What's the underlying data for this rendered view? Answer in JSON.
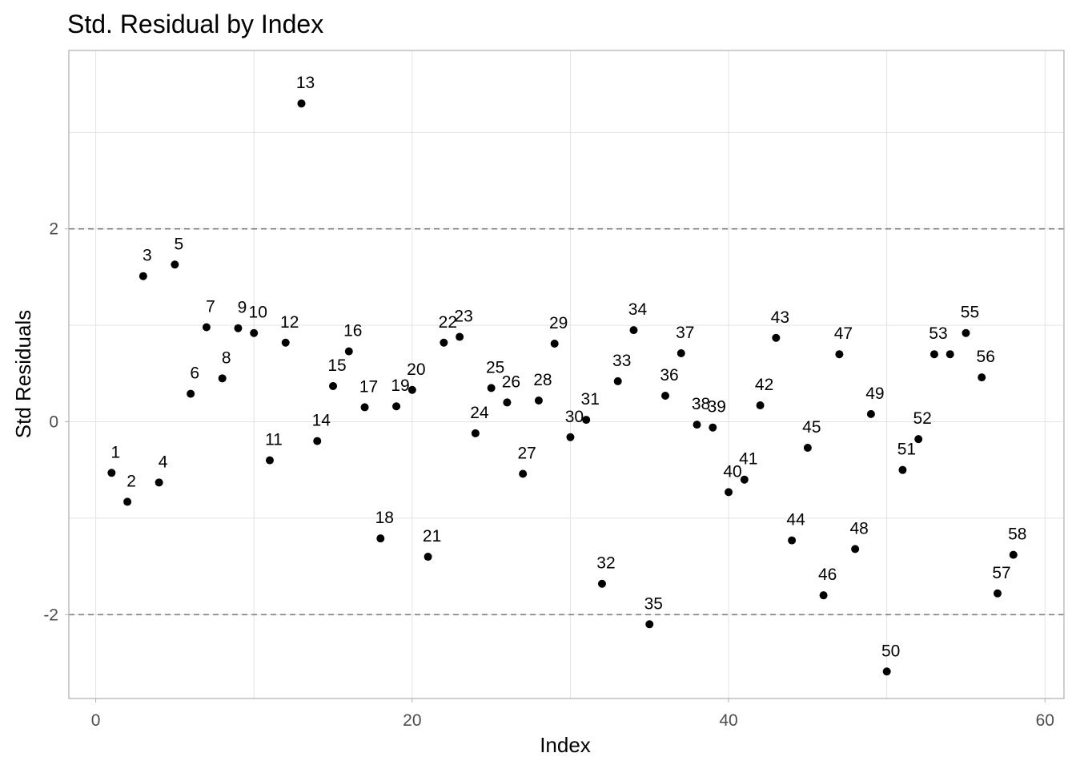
{
  "chart_data": {
    "type": "scatter",
    "title": "Std. Residual by Index",
    "xlabel": "Index",
    "ylabel": "Std Residuals",
    "xlim": [
      -1.7,
      61.2
    ],
    "ylim": [
      -2.87,
      3.85
    ],
    "x_ticks": [
      0,
      20,
      40,
      60
    ],
    "y_ticks": [
      -2,
      0,
      2
    ],
    "x_tick_labels": [
      "0",
      "20",
      "40",
      "60"
    ],
    "y_tick_labels": [
      "-2",
      "0",
      "2"
    ],
    "grid": true,
    "reference_lines": [
      2,
      -2
    ],
    "point_color": "#000000",
    "reference_line_color": "#7f7f7f",
    "points": [
      {
        "x": 1,
        "y": -0.53,
        "label": "1"
      },
      {
        "x": 2,
        "y": -0.83,
        "label": "2"
      },
      {
        "x": 3,
        "y": 1.51,
        "label": "3"
      },
      {
        "x": 4,
        "y": -0.63,
        "label": "4"
      },
      {
        "x": 5,
        "y": 1.63,
        "label": "5"
      },
      {
        "x": 6,
        "y": 0.29,
        "label": "6"
      },
      {
        "x": 7,
        "y": 0.98,
        "label": "7"
      },
      {
        "x": 8,
        "y": 0.45,
        "label": "8"
      },
      {
        "x": 9,
        "y": 0.97,
        "label": "9"
      },
      {
        "x": 10,
        "y": 0.92,
        "label": "10"
      },
      {
        "x": 11,
        "y": -0.4,
        "label": "11"
      },
      {
        "x": 12,
        "y": 0.82,
        "label": "12"
      },
      {
        "x": 13,
        "y": 3.3,
        "label": "13"
      },
      {
        "x": 14,
        "y": -0.2,
        "label": "14"
      },
      {
        "x": 15,
        "y": 0.37,
        "label": "15"
      },
      {
        "x": 16,
        "y": 0.73,
        "label": "16"
      },
      {
        "x": 17,
        "y": 0.15,
        "label": "17"
      },
      {
        "x": 18,
        "y": -1.21,
        "label": "18"
      },
      {
        "x": 19,
        "y": 0.16,
        "label": "19"
      },
      {
        "x": 20,
        "y": 0.33,
        "label": "20"
      },
      {
        "x": 21,
        "y": -1.4,
        "label": "21"
      },
      {
        "x": 22,
        "y": 0.82,
        "label": "22"
      },
      {
        "x": 23,
        "y": 0.88,
        "label": "23"
      },
      {
        "x": 24,
        "y": -0.12,
        "label": "24"
      },
      {
        "x": 25,
        "y": 0.35,
        "label": "25"
      },
      {
        "x": 26,
        "y": 0.2,
        "label": "26"
      },
      {
        "x": 27,
        "y": -0.54,
        "label": "27"
      },
      {
        "x": 28,
        "y": 0.22,
        "label": "28"
      },
      {
        "x": 29,
        "y": 0.81,
        "label": "29"
      },
      {
        "x": 30,
        "y": -0.16,
        "label": "30"
      },
      {
        "x": 31,
        "y": 0.02,
        "label": "31"
      },
      {
        "x": 32,
        "y": -1.68,
        "label": "32"
      },
      {
        "x": 33,
        "y": 0.42,
        "label": "33"
      },
      {
        "x": 34,
        "y": 0.95,
        "label": "34"
      },
      {
        "x": 35,
        "y": -2.1,
        "label": "35"
      },
      {
        "x": 36,
        "y": 0.27,
        "label": "36"
      },
      {
        "x": 37,
        "y": 0.71,
        "label": "37"
      },
      {
        "x": 38,
        "y": -0.03,
        "label": "38"
      },
      {
        "x": 39,
        "y": -0.06,
        "label": "39"
      },
      {
        "x": 40,
        "y": -0.73,
        "label": "40"
      },
      {
        "x": 41,
        "y": -0.6,
        "label": "41"
      },
      {
        "x": 42,
        "y": 0.17,
        "label": "42"
      },
      {
        "x": 43,
        "y": 0.87,
        "label": "43"
      },
      {
        "x": 44,
        "y": -1.23,
        "label": "44"
      },
      {
        "x": 45,
        "y": -0.27,
        "label": "45"
      },
      {
        "x": 46,
        "y": -1.8,
        "label": "46"
      },
      {
        "x": 47,
        "y": 0.7,
        "label": "47"
      },
      {
        "x": 48,
        "y": -1.32,
        "label": "48"
      },
      {
        "x": 49,
        "y": 0.08,
        "label": "49"
      },
      {
        "x": 50,
        "y": -2.59,
        "label": "50"
      },
      {
        "x": 51,
        "y": -0.5,
        "label": "51"
      },
      {
        "x": 52,
        "y": -0.18,
        "label": "52"
      },
      {
        "x": 53,
        "y": 0.7,
        "label": "53"
      },
      {
        "x": 54,
        "y": 0.7,
        "label": ""
      },
      {
        "x": 55,
        "y": 0.92,
        "label": "55"
      },
      {
        "x": 56,
        "y": 0.46,
        "label": "56"
      },
      {
        "x": 57,
        "y": -1.78,
        "label": "57"
      },
      {
        "x": 58,
        "y": -1.38,
        "label": "58"
      }
    ]
  }
}
